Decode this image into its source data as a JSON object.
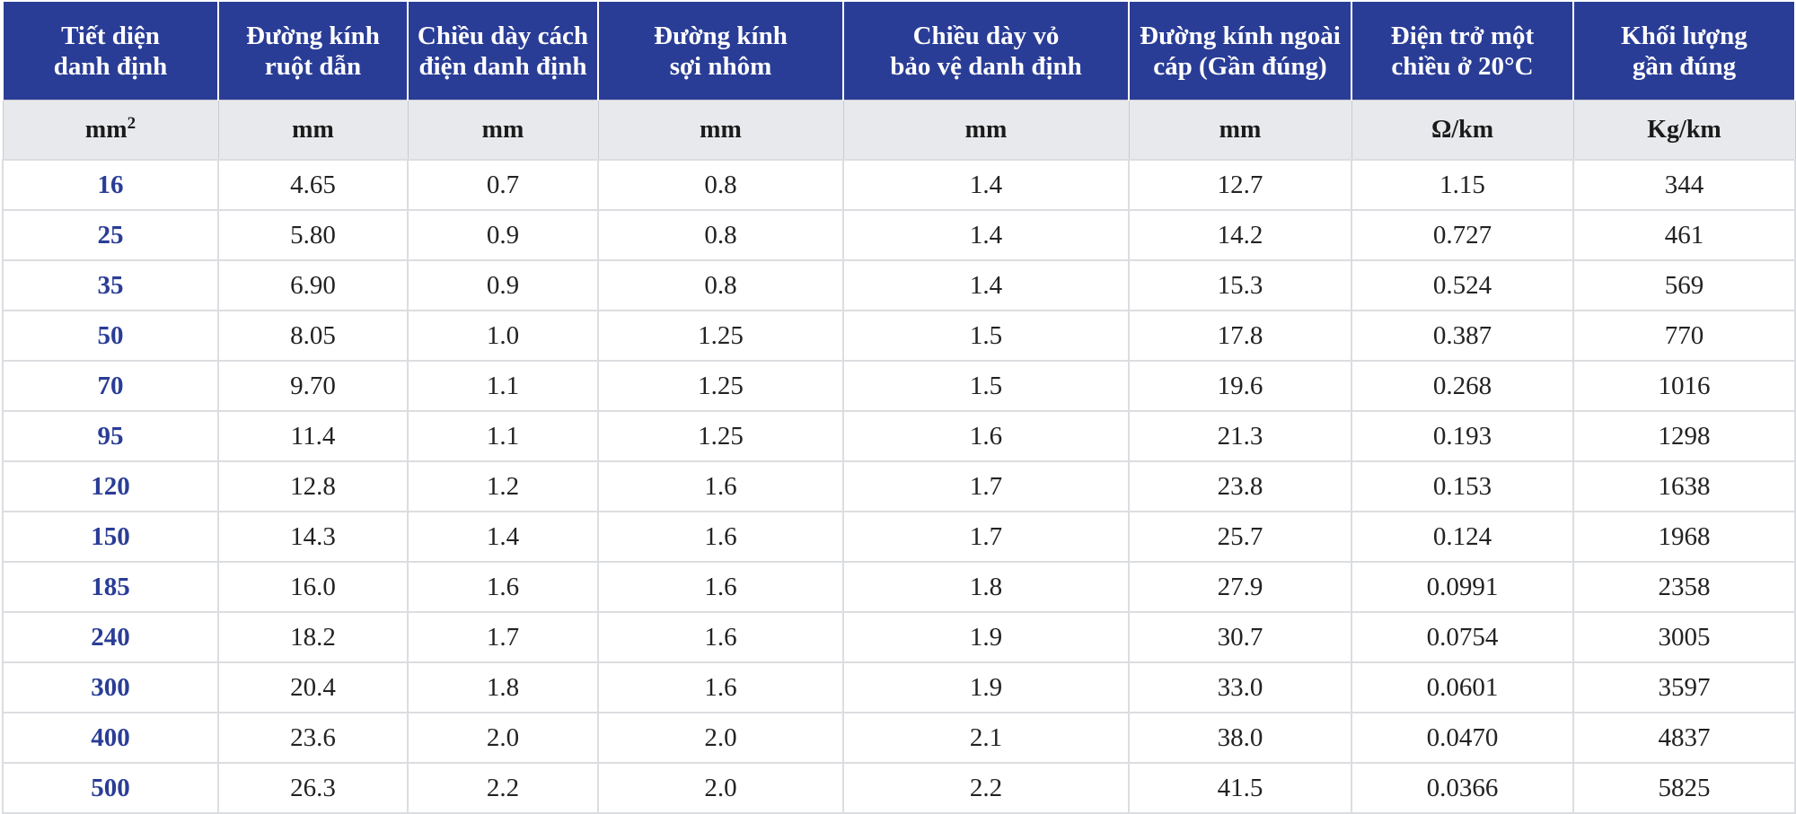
{
  "table": {
    "headers": [
      [
        "Tiết diện",
        "danh định"
      ],
      [
        "Đường kính",
        "ruột dẫn"
      ],
      [
        "Chiều dày cách",
        "điện danh định"
      ],
      [
        "Đường kính",
        "sợi nhôm"
      ],
      [
        "Chiều dày vỏ",
        "bảo vệ danh định"
      ],
      [
        "Đường kính ngoài",
        "cáp (Gần đúng)"
      ],
      [
        "Điện trở một",
        "chiều ở 20°C"
      ],
      [
        "Khối lượng",
        "gần đúng"
      ]
    ],
    "units": [
      "mm²",
      "mm",
      "mm",
      "mm",
      "mm",
      "mm",
      "Ω/km",
      "Kg/km"
    ],
    "rows": [
      [
        "16",
        "4.65",
        "0.7",
        "0.8",
        "1.4",
        "12.7",
        "1.15",
        "344"
      ],
      [
        "25",
        "5.80",
        "0.9",
        "0.8",
        "1.4",
        "14.2",
        "0.727",
        "461"
      ],
      [
        "35",
        "6.90",
        "0.9",
        "0.8",
        "1.4",
        "15.3",
        "0.524",
        "569"
      ],
      [
        "50",
        "8.05",
        "1.0",
        "1.25",
        "1.5",
        "17.8",
        "0.387",
        "770"
      ],
      [
        "70",
        "9.70",
        "1.1",
        "1.25",
        "1.5",
        "19.6",
        "0.268",
        "1016"
      ],
      [
        "95",
        "11.4",
        "1.1",
        "1.25",
        "1.6",
        "21.3",
        "0.193",
        "1298"
      ],
      [
        "120",
        "12.8",
        "1.2",
        "1.6",
        "1.7",
        "23.8",
        "0.153",
        "1638"
      ],
      [
        "150",
        "14.3",
        "1.4",
        "1.6",
        "1.7",
        "25.7",
        "0.124",
        "1968"
      ],
      [
        "185",
        "16.0",
        "1.6",
        "1.6",
        "1.8",
        "27.9",
        "0.0991",
        "2358"
      ],
      [
        "240",
        "18.2",
        "1.7",
        "1.6",
        "1.9",
        "30.7",
        "0.0754",
        "3005"
      ],
      [
        "300",
        "20.4",
        "1.8",
        "1.6",
        "1.9",
        "33.0",
        "0.0601",
        "3597"
      ],
      [
        "400",
        "23.6",
        "2.0",
        "2.0",
        "2.1",
        "38.0",
        "0.0470",
        "4837"
      ],
      [
        "500",
        "26.3",
        "2.2",
        "2.0",
        "2.2",
        "41.5",
        "0.0366",
        "5825"
      ]
    ]
  },
  "colors": {
    "header_bg": "#2a3d96",
    "units_bg": "#e8e9ec",
    "first_col_text": "#2a3d96",
    "grid": "#dcdde0"
  }
}
